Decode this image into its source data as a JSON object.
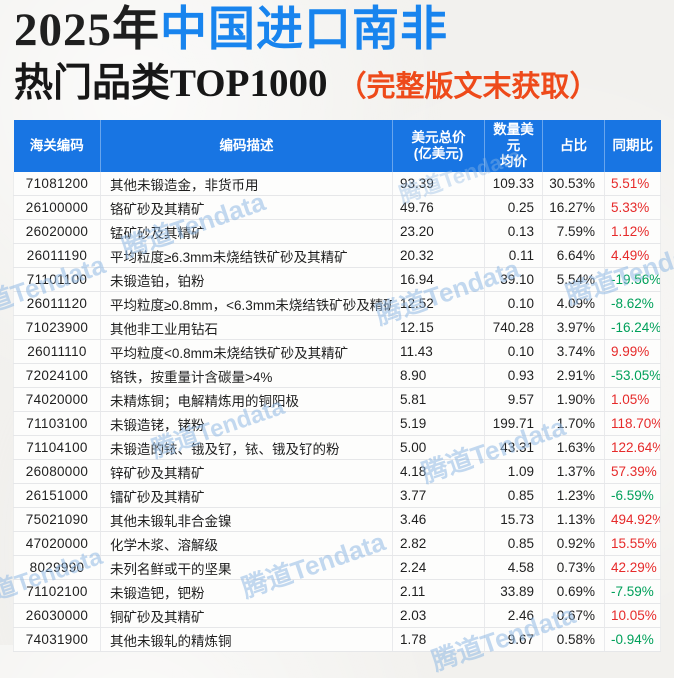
{
  "title": {
    "year": "2025年",
    "highlight": "中国进口南非",
    "line2": "热门品类TOP1000",
    "note": "（完整版文末获取）"
  },
  "watermark": {
    "text": "腾道Tendata"
  },
  "colors": {
    "header_bg": "#1875E3",
    "title_blue": "#1884EE",
    "title_orange": "#EE4A1A",
    "yoy_up_red": "#E62A2A",
    "yoy_down_green": "#00A05A",
    "watermark_blue": "#92B9E4"
  },
  "table": {
    "columns": [
      {
        "label": "海关编码"
      },
      {
        "label": "编码描述"
      },
      {
        "label": "美元总价",
        "label2": "(亿美元)"
      },
      {
        "label": "数量美元",
        "label2": "均价"
      },
      {
        "label": "占比"
      },
      {
        "label": "同期比"
      }
    ],
    "rows": [
      {
        "code": "71081200",
        "desc": "其他未锻造金，非货币用",
        "total": "93.39",
        "avg": "109.33",
        "share": "30.53%",
        "yoy": "5.51%",
        "trend": "up"
      },
      {
        "code": "26100000",
        "desc": "铬矿砂及其精矿",
        "total": "49.76",
        "avg": "0.25",
        "share": "16.27%",
        "yoy": "5.33%",
        "trend": "up"
      },
      {
        "code": "26020000",
        "desc": "锰矿砂及其精矿",
        "total": "23.20",
        "avg": "0.13",
        "share": "7.59%",
        "yoy": "1.12%",
        "trend": "up"
      },
      {
        "code": "26011190",
        "desc": "平均粒度≥6.3mm未烧结铁矿砂及其精矿",
        "total": "20.32",
        "avg": "0.11",
        "share": "6.64%",
        "yoy": "4.49%",
        "trend": "up"
      },
      {
        "code": "71101100",
        "desc": "未锻造铂，铂粉",
        "total": "16.94",
        "avg": "39.10",
        "share": "5.54%",
        "yoy": "-19.56%",
        "trend": "down"
      },
      {
        "code": "26011120",
        "desc": "平均粒度≥0.8mm，<6.3mm未烧结铁矿砂及精矿",
        "total": "12.52",
        "avg": "0.10",
        "share": "4.09%",
        "yoy": "-8.62%",
        "trend": "down"
      },
      {
        "code": "71023900",
        "desc": "其他非工业用钻石",
        "total": "12.15",
        "avg": "740.28",
        "share": "3.97%",
        "yoy": "-16.24%",
        "trend": "down"
      },
      {
        "code": "26011110",
        "desc": "平均粒度<0.8mm未烧结铁矿砂及其精矿",
        "total": "11.43",
        "avg": "0.10",
        "share": "3.74%",
        "yoy": "9.99%",
        "trend": "up"
      },
      {
        "code": "72024100",
        "desc": "铬铁，按重量计含碳量>4%",
        "total": "8.90",
        "avg": "0.93",
        "share": "2.91%",
        "yoy": "-53.05%",
        "trend": "down"
      },
      {
        "code": "74020000",
        "desc": "未精炼铜；电解精炼用的铜阳极",
        "total": "5.81",
        "avg": "9.57",
        "share": "1.90%",
        "yoy": "1.05%",
        "trend": "up"
      },
      {
        "code": "71103100",
        "desc": "未锻造铑，铑粉",
        "total": "5.19",
        "avg": "199.71",
        "share": "1.70%",
        "yoy": "118.70%",
        "trend": "up"
      },
      {
        "code": "71104100",
        "desc": "未锻造的铱、锇及钌，铱、锇及钌的粉",
        "total": "5.00",
        "avg": "43.31",
        "share": "1.63%",
        "yoy": "122.64%",
        "trend": "up"
      },
      {
        "code": "26080000",
        "desc": "锌矿砂及其精矿",
        "total": "4.18",
        "avg": "1.09",
        "share": "1.37%",
        "yoy": "57.39%",
        "trend": "up"
      },
      {
        "code": "26151000",
        "desc": "镭矿砂及其精矿",
        "total": "3.77",
        "avg": "0.85",
        "share": "1.23%",
        "yoy": "-6.59%",
        "trend": "down"
      },
      {
        "code": "75021090",
        "desc": "其他未锻轧非合金镍",
        "total": "3.46",
        "avg": "15.73",
        "share": "1.13%",
        "yoy": "494.92%",
        "trend": "up"
      },
      {
        "code": "47020000",
        "desc": "化学木浆、溶解级",
        "total": "2.82",
        "avg": "0.85",
        "share": "0.92%",
        "yoy": "15.55%",
        "trend": "up"
      },
      {
        "code": "8029990",
        "desc": "未列名鲜或干的坚果",
        "total": "2.24",
        "avg": "4.58",
        "share": "0.73%",
        "yoy": "42.29%",
        "trend": "up"
      },
      {
        "code": "71102100",
        "desc": "未锻造钯，钯粉",
        "total": "2.11",
        "avg": "33.89",
        "share": "0.69%",
        "yoy": "-7.59%",
        "trend": "down"
      },
      {
        "code": "26030000",
        "desc": "铜矿砂及其精矿",
        "total": "2.03",
        "avg": "2.46",
        "share": "0.67%",
        "yoy": "10.05%",
        "trend": "up"
      },
      {
        "code": "74031900",
        "desc": "其他未锻轧的精炼铜",
        "total": "1.78",
        "avg": "9.67",
        "share": "0.58%",
        "yoy": "-0.94%",
        "trend": "down"
      }
    ]
  }
}
